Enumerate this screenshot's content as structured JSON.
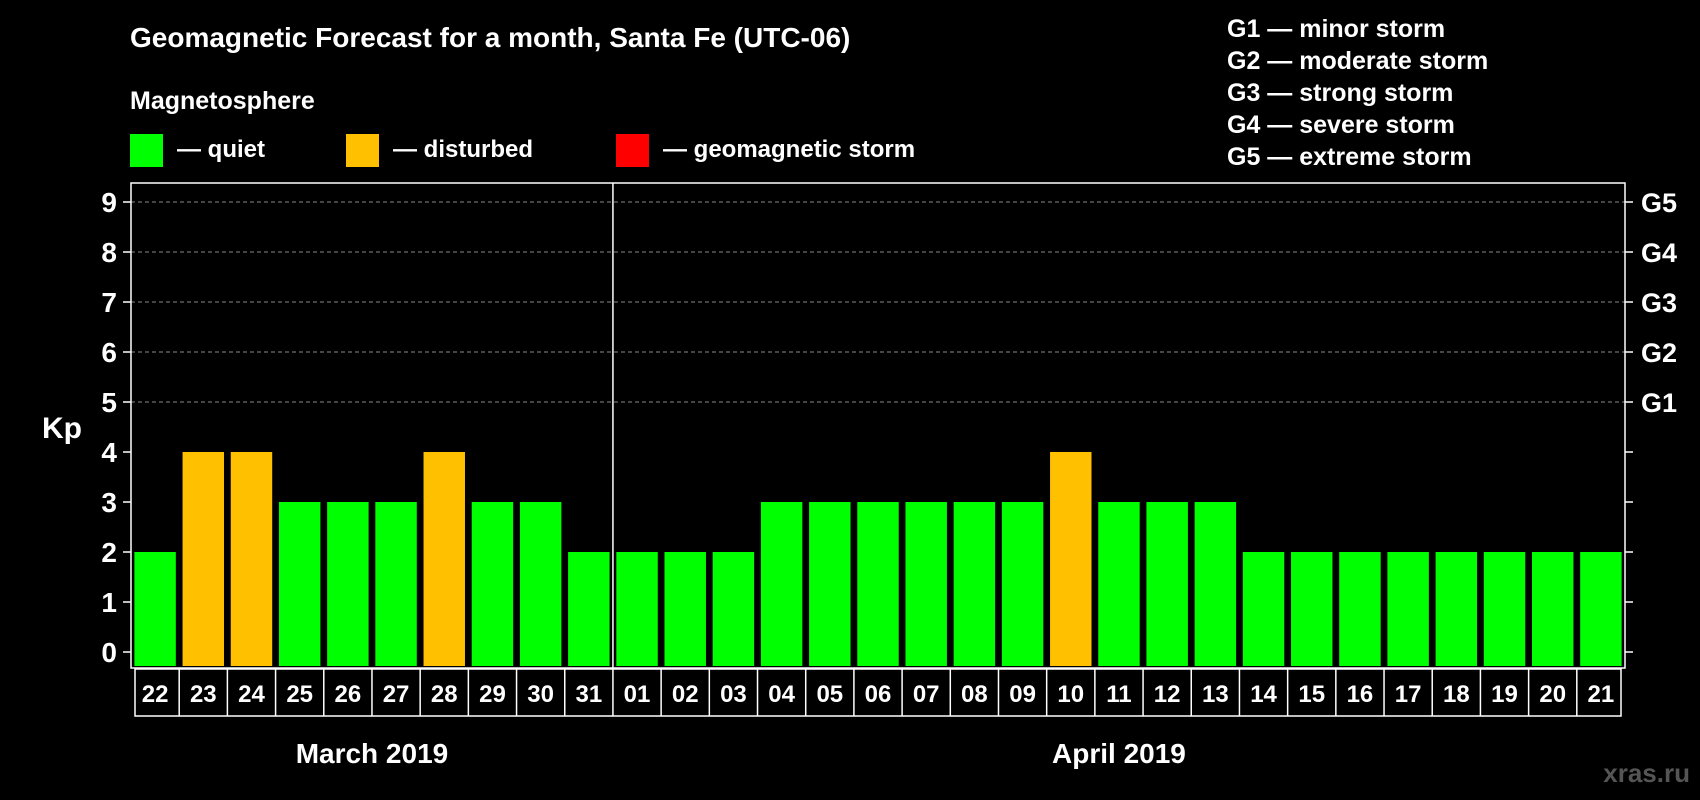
{
  "title": "Geomagnetic Forecast for a month, Santa Fe (UTC-06)",
  "legend": {
    "heading": "Magnetosphere",
    "items": [
      {
        "label": "— quiet",
        "color": "#00ff00"
      },
      {
        "label": "— disturbed",
        "color": "#ffc000"
      },
      {
        "label": "— geomagnetic storm",
        "color": "#ff0000"
      }
    ]
  },
  "storm_scale": [
    "G1 — minor storm",
    "G2 — moderate storm",
    "G3 — strong storm",
    "G4 — severe storm",
    "G5 — extreme storm"
  ],
  "watermark": "xras.ru",
  "chart_data": {
    "type": "bar",
    "ylabel": "Kp",
    "ylim": [
      0,
      9
    ],
    "yticks": [
      "0",
      "1",
      "2",
      "3",
      "4",
      "5",
      "6",
      "7",
      "8",
      "9"
    ],
    "right_labels": [
      {
        "kp": 5,
        "label": "G1"
      },
      {
        "kp": 6,
        "label": "G2"
      },
      {
        "kp": 7,
        "label": "G3"
      },
      {
        "kp": 8,
        "label": "G4"
      },
      {
        "kp": 9,
        "label": "G5"
      }
    ],
    "grid": "dashed horizontal at 5-9",
    "categories": [
      "22",
      "23",
      "24",
      "25",
      "26",
      "27",
      "28",
      "29",
      "30",
      "31",
      "01",
      "02",
      "03",
      "04",
      "05",
      "06",
      "07",
      "08",
      "09",
      "10",
      "11",
      "12",
      "13",
      "14",
      "15",
      "16",
      "17",
      "18",
      "19",
      "20",
      "21"
    ],
    "values": [
      2,
      4,
      4,
      3,
      3,
      3,
      4,
      3,
      3,
      2,
      2,
      2,
      2,
      3,
      3,
      3,
      3,
      3,
      3,
      4,
      3,
      3,
      3,
      2,
      2,
      2,
      2,
      2,
      2,
      2,
      2
    ],
    "months": [
      {
        "label": "March 2019",
        "days": 10
      },
      {
        "label": "April 2019",
        "days": 21
      }
    ],
    "colors": {
      "quiet": "#00ff00",
      "disturbed": "#ffc000",
      "storm": "#ff0000"
    }
  }
}
